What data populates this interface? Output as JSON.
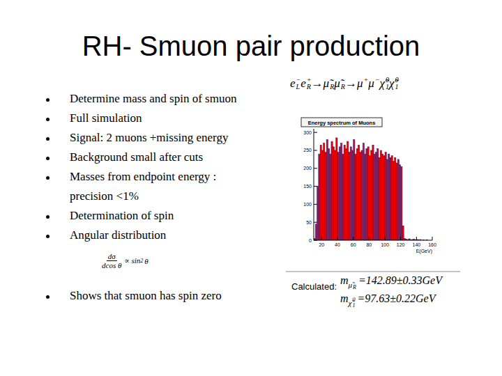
{
  "title": "RH- Smuon pair production",
  "bullets": [
    "Determine mass and spin of smuon",
    "Full simulation",
    "Signal: 2 muons +missing energy",
    "Background small after cuts",
    "Masses from endpoint energy :\nprecision <1%",
    "Determination of spin",
    "Angular distribution",
    "Shows that smuon has spin zero"
  ],
  "formula": {
    "numerator": "dσ",
    "denominator": "dcos θ",
    "rhs": "∝ sin",
    "power": "2",
    "tail": "θ"
  },
  "reaction": [
    {
      "text": "e",
      "sup": "−",
      "sub": "L"
    },
    {
      "text": "e",
      "sup": "+",
      "sub": "R"
    },
    {
      "text": "→"
    },
    {
      "text": "μ̃",
      "sub": "R"
    },
    {
      "text": "μ̃",
      "sub": "R"
    },
    {
      "text": "→"
    },
    {
      "text": "μ",
      "sup": "+"
    },
    {
      "text": "μ",
      "sup": "−"
    },
    {
      "text": "χ̃",
      "sup": "0",
      "sub": "1"
    },
    {
      "text": "χ̃",
      "sup": "0",
      "sub": "1"
    }
  ],
  "calculated": {
    "label": "Calculated:",
    "masses": [
      {
        "symbol": "m",
        "sub": "μ̃",
        "subsub": "R",
        "value": "=142.89±0.33GeV"
      },
      {
        "symbol": "m",
        "sub": "χ̃",
        "subsup": "0",
        "subsub": "1",
        "value": "=97.63±0.22GeV"
      }
    ]
  },
  "chart_data": {
    "type": "histogram",
    "title": "Energy spectrum of Muons",
    "x_label": "E(GeV)",
    "bins": [
      10,
      12,
      14,
      16,
      18,
      20,
      22,
      24,
      26,
      28,
      30,
      32,
      34,
      36,
      38,
      40,
      42,
      44,
      46,
      48,
      50,
      52,
      54,
      56,
      58,
      60,
      62,
      64,
      66,
      68,
      70,
      72,
      74,
      76,
      78,
      80,
      82,
      84,
      86,
      88,
      90,
      92,
      94,
      96,
      98,
      100,
      102,
      104,
      106,
      108,
      110,
      112,
      114,
      116,
      118,
      120,
      122,
      124,
      126,
      128,
      130,
      132,
      134,
      136,
      138,
      140,
      142,
      144,
      146,
      148,
      150,
      152,
      154,
      156,
      158,
      160
    ],
    "values": [
      5,
      45,
      150,
      240,
      265,
      250,
      270,
      245,
      280,
      255,
      240,
      275,
      260,
      250,
      285,
      245,
      260,
      270,
      240,
      265,
      255,
      275,
      245,
      260,
      250,
      280,
      240,
      255,
      265,
      245,
      250,
      270,
      240,
      255,
      260,
      235,
      250,
      265,
      240,
      245,
      255,
      230,
      250,
      240,
      235,
      245,
      225,
      240,
      230,
      235,
      220,
      230,
      215,
      225,
      210,
      205,
      40,
      5,
      3,
      2,
      4,
      1,
      2,
      3,
      1,
      2,
      1,
      2,
      0,
      1,
      0,
      1,
      0,
      0,
      0
    ],
    "color": "#ee0000",
    "xlim": [
      10,
      160
    ],
    "ylim": [
      0,
      310
    ],
    "xticks": [
      20,
      40,
      60,
      80,
      100,
      120,
      140,
      160
    ],
    "yticks": [
      0,
      50,
      100,
      150,
      200,
      250,
      300
    ]
  }
}
